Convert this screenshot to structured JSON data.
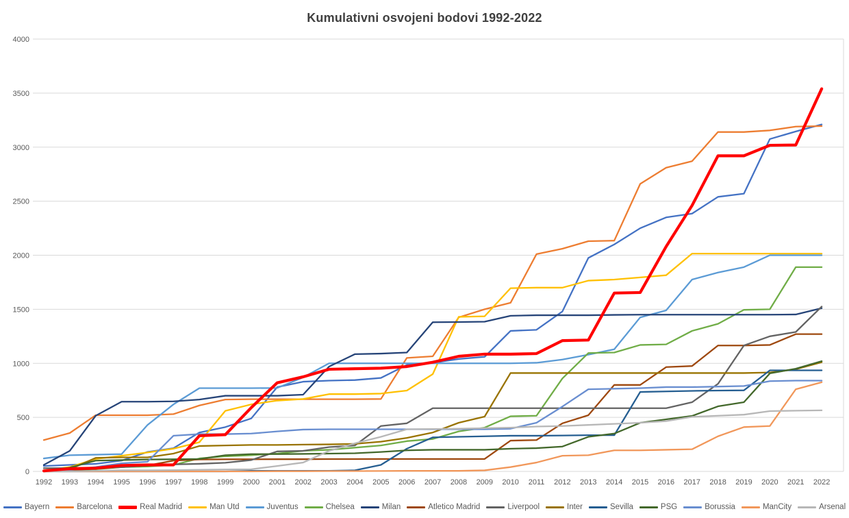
{
  "chart_data": {
    "type": "line",
    "title": "Kumulativni osvojeni bodovi 1992-2022",
    "xlabel": "",
    "ylabel": "",
    "ylim": [
      0,
      4000
    ],
    "ytick_step": 500,
    "yticks": [
      0,
      500,
      1000,
      1500,
      2000,
      2500,
      3000,
      3500,
      4000
    ],
    "grid": true,
    "legend_position": "bottom",
    "x": [
      1992,
      1993,
      1994,
      1995,
      1996,
      1997,
      1998,
      1999,
      2000,
      2001,
      2002,
      2003,
      2004,
      2005,
      2006,
      2007,
      2008,
      2009,
      2010,
      2011,
      2012,
      2013,
      2014,
      2015,
      2016,
      2017,
      2018,
      2019,
      2020,
      2021,
      2022
    ],
    "series": [
      {
        "name": "Bayern",
        "color": "#4472C4",
        "width": 2.3,
        "values": [
          50,
          60,
          70,
          100,
          180,
          215,
          360,
          410,
          490,
          780,
          830,
          840,
          845,
          865,
          985,
          1005,
          1040,
          1060,
          1300,
          1310,
          1480,
          1975,
          2100,
          2250,
          2350,
          2385,
          2540,
          2570,
          3075,
          3145,
          3210
        ]
      },
      {
        "name": "Barcelona",
        "color": "#ED7D31",
        "width": 2.3,
        "values": [
          290,
          355,
          520,
          520,
          520,
          530,
          610,
          665,
          668,
          668,
          668,
          668,
          668,
          670,
          1050,
          1065,
          1425,
          1500,
          1560,
          2010,
          2060,
          2130,
          2135,
          2660,
          2810,
          2870,
          3140,
          3140,
          3155,
          3190,
          3195
        ]
      },
      {
        "name": "Real Madrid",
        "color": "#FF0000",
        "width": 4.2,
        "values": [
          5,
          25,
          30,
          55,
          60,
          60,
          330,
          340,
          590,
          820,
          875,
          945,
          950,
          955,
          970,
          1010,
          1065,
          1085,
          1085,
          1090,
          1210,
          1215,
          1650,
          1655,
          2080,
          2460,
          2920,
          2920,
          3017,
          3020,
          3540
        ]
      },
      {
        "name": "Man Utd",
        "color": "#FFC000",
        "width": 2.3,
        "values": [
          10,
          40,
          115,
          145,
          175,
          210,
          270,
          560,
          620,
          655,
          670,
          715,
          715,
          720,
          748,
          900,
          1430,
          1435,
          1695,
          1700,
          1700,
          1765,
          1775,
          1795,
          1815,
          2015,
          2015,
          2015,
          2015,
          2015,
          2015
        ]
      },
      {
        "name": "Juventus",
        "color": "#5B9BD5",
        "width": 2.3,
        "values": [
          120,
          150,
          155,
          160,
          430,
          620,
          770,
          770,
          770,
          772,
          870,
          1000,
          1000,
          1000,
          1000,
          1000,
          1000,
          1000,
          1000,
          1005,
          1035,
          1080,
          1130,
          1425,
          1490,
          1775,
          1840,
          1890,
          2000,
          2000,
          2000
        ]
      },
      {
        "name": "Chelsea",
        "color": "#70AD47",
        "width": 2.3,
        "values": [
          0,
          5,
          20,
          40,
          45,
          60,
          120,
          140,
          150,
          165,
          190,
          200,
          220,
          240,
          280,
          300,
          370,
          405,
          510,
          515,
          860,
          1095,
          1100,
          1170,
          1175,
          1300,
          1365,
          1495,
          1500,
          1890,
          1890
        ]
      },
      {
        "name": "Milan",
        "color": "#264478",
        "width": 2.3,
        "values": [
          60,
          190,
          515,
          645,
          645,
          648,
          665,
          700,
          700,
          700,
          710,
          970,
          1085,
          1090,
          1100,
          1380,
          1382,
          1385,
          1440,
          1445,
          1445,
          1445,
          1448,
          1450,
          1450,
          1450,
          1450,
          1450,
          1450,
          1452,
          1510
        ]
      },
      {
        "name": "Atletico Madrid",
        "color": "#9E480E",
        "width": 2.3,
        "values": [
          0,
          10,
          25,
          40,
          55,
          100,
          110,
          112,
          112,
          113,
          113,
          114,
          114,
          115,
          115,
          115,
          115,
          115,
          285,
          290,
          445,
          520,
          800,
          800,
          965,
          975,
          1165,
          1165,
          1170,
          1270,
          1270
        ]
      },
      {
        "name": "Liverpool",
        "color": "#636363",
        "width": 2.3,
        "values": [
          30,
          30,
          35,
          40,
          55,
          65,
          70,
          80,
          105,
          185,
          190,
          225,
          240,
          420,
          445,
          585,
          585,
          585,
          585,
          585,
          585,
          585,
          585,
          585,
          585,
          640,
          810,
          1165,
          1250,
          1290,
          1525
        ]
      },
      {
        "name": "Inter",
        "color": "#997300",
        "width": 2.3,
        "values": [
          0,
          20,
          125,
          130,
          130,
          165,
          235,
          240,
          245,
          245,
          248,
          250,
          255,
          275,
          310,
          360,
          450,
          507,
          910,
          910,
          910,
          910,
          910,
          910,
          910,
          910,
          910,
          910,
          915,
          945,
          1010
        ]
      },
      {
        "name": "Sevilla",
        "color": "#255E91",
        "width": 2.3,
        "values": [
          0,
          0,
          0,
          0,
          0,
          0,
          0,
          0,
          5,
          5,
          5,
          5,
          10,
          60,
          210,
          315,
          320,
          325,
          330,
          330,
          332,
          335,
          335,
          735,
          740,
          745,
          748,
          750,
          935,
          935,
          935
        ]
      },
      {
        "name": "PSG",
        "color": "#43682B",
        "width": 2.3,
        "values": [
          0,
          35,
          100,
          105,
          110,
          112,
          115,
          150,
          160,
          160,
          162,
          165,
          168,
          180,
          195,
          200,
          200,
          200,
          210,
          215,
          230,
          320,
          350,
          450,
          482,
          513,
          602,
          640,
          907,
          950,
          1020
        ]
      },
      {
        "name": "Borussia",
        "color": "#698ED0",
        "width": 2.3,
        "values": [
          0,
          15,
          40,
          75,
          90,
          330,
          345,
          345,
          350,
          370,
          387,
          390,
          390,
          390,
          390,
          390,
          390,
          390,
          395,
          450,
          600,
          760,
          765,
          770,
          780,
          780,
          785,
          790,
          835,
          840,
          840
        ]
      },
      {
        "name": "ManCity",
        "color": "#F1975A",
        "width": 2.3,
        "values": [
          0,
          0,
          0,
          0,
          0,
          0,
          0,
          0,
          0,
          2,
          2,
          3,
          3,
          4,
          5,
          5,
          5,
          10,
          40,
          82,
          145,
          150,
          195,
          195,
          200,
          205,
          325,
          410,
          420,
          760,
          825
        ]
      },
      {
        "name": "Arsenal",
        "color": "#B7B7B7",
        "width": 2.3,
        "values": [
          0,
          0,
          5,
          10,
          10,
          12,
          15,
          18,
          20,
          50,
          82,
          190,
          260,
          320,
          390,
          392,
          395,
          400,
          405,
          415,
          420,
          430,
          440,
          450,
          465,
          505,
          515,
          525,
          558,
          562,
          565
        ]
      }
    ]
  },
  "layout_hints": {
    "gridline_color": "#D9D9D9",
    "axis_label_color": "#595959",
    "title_color": "#404040"
  }
}
